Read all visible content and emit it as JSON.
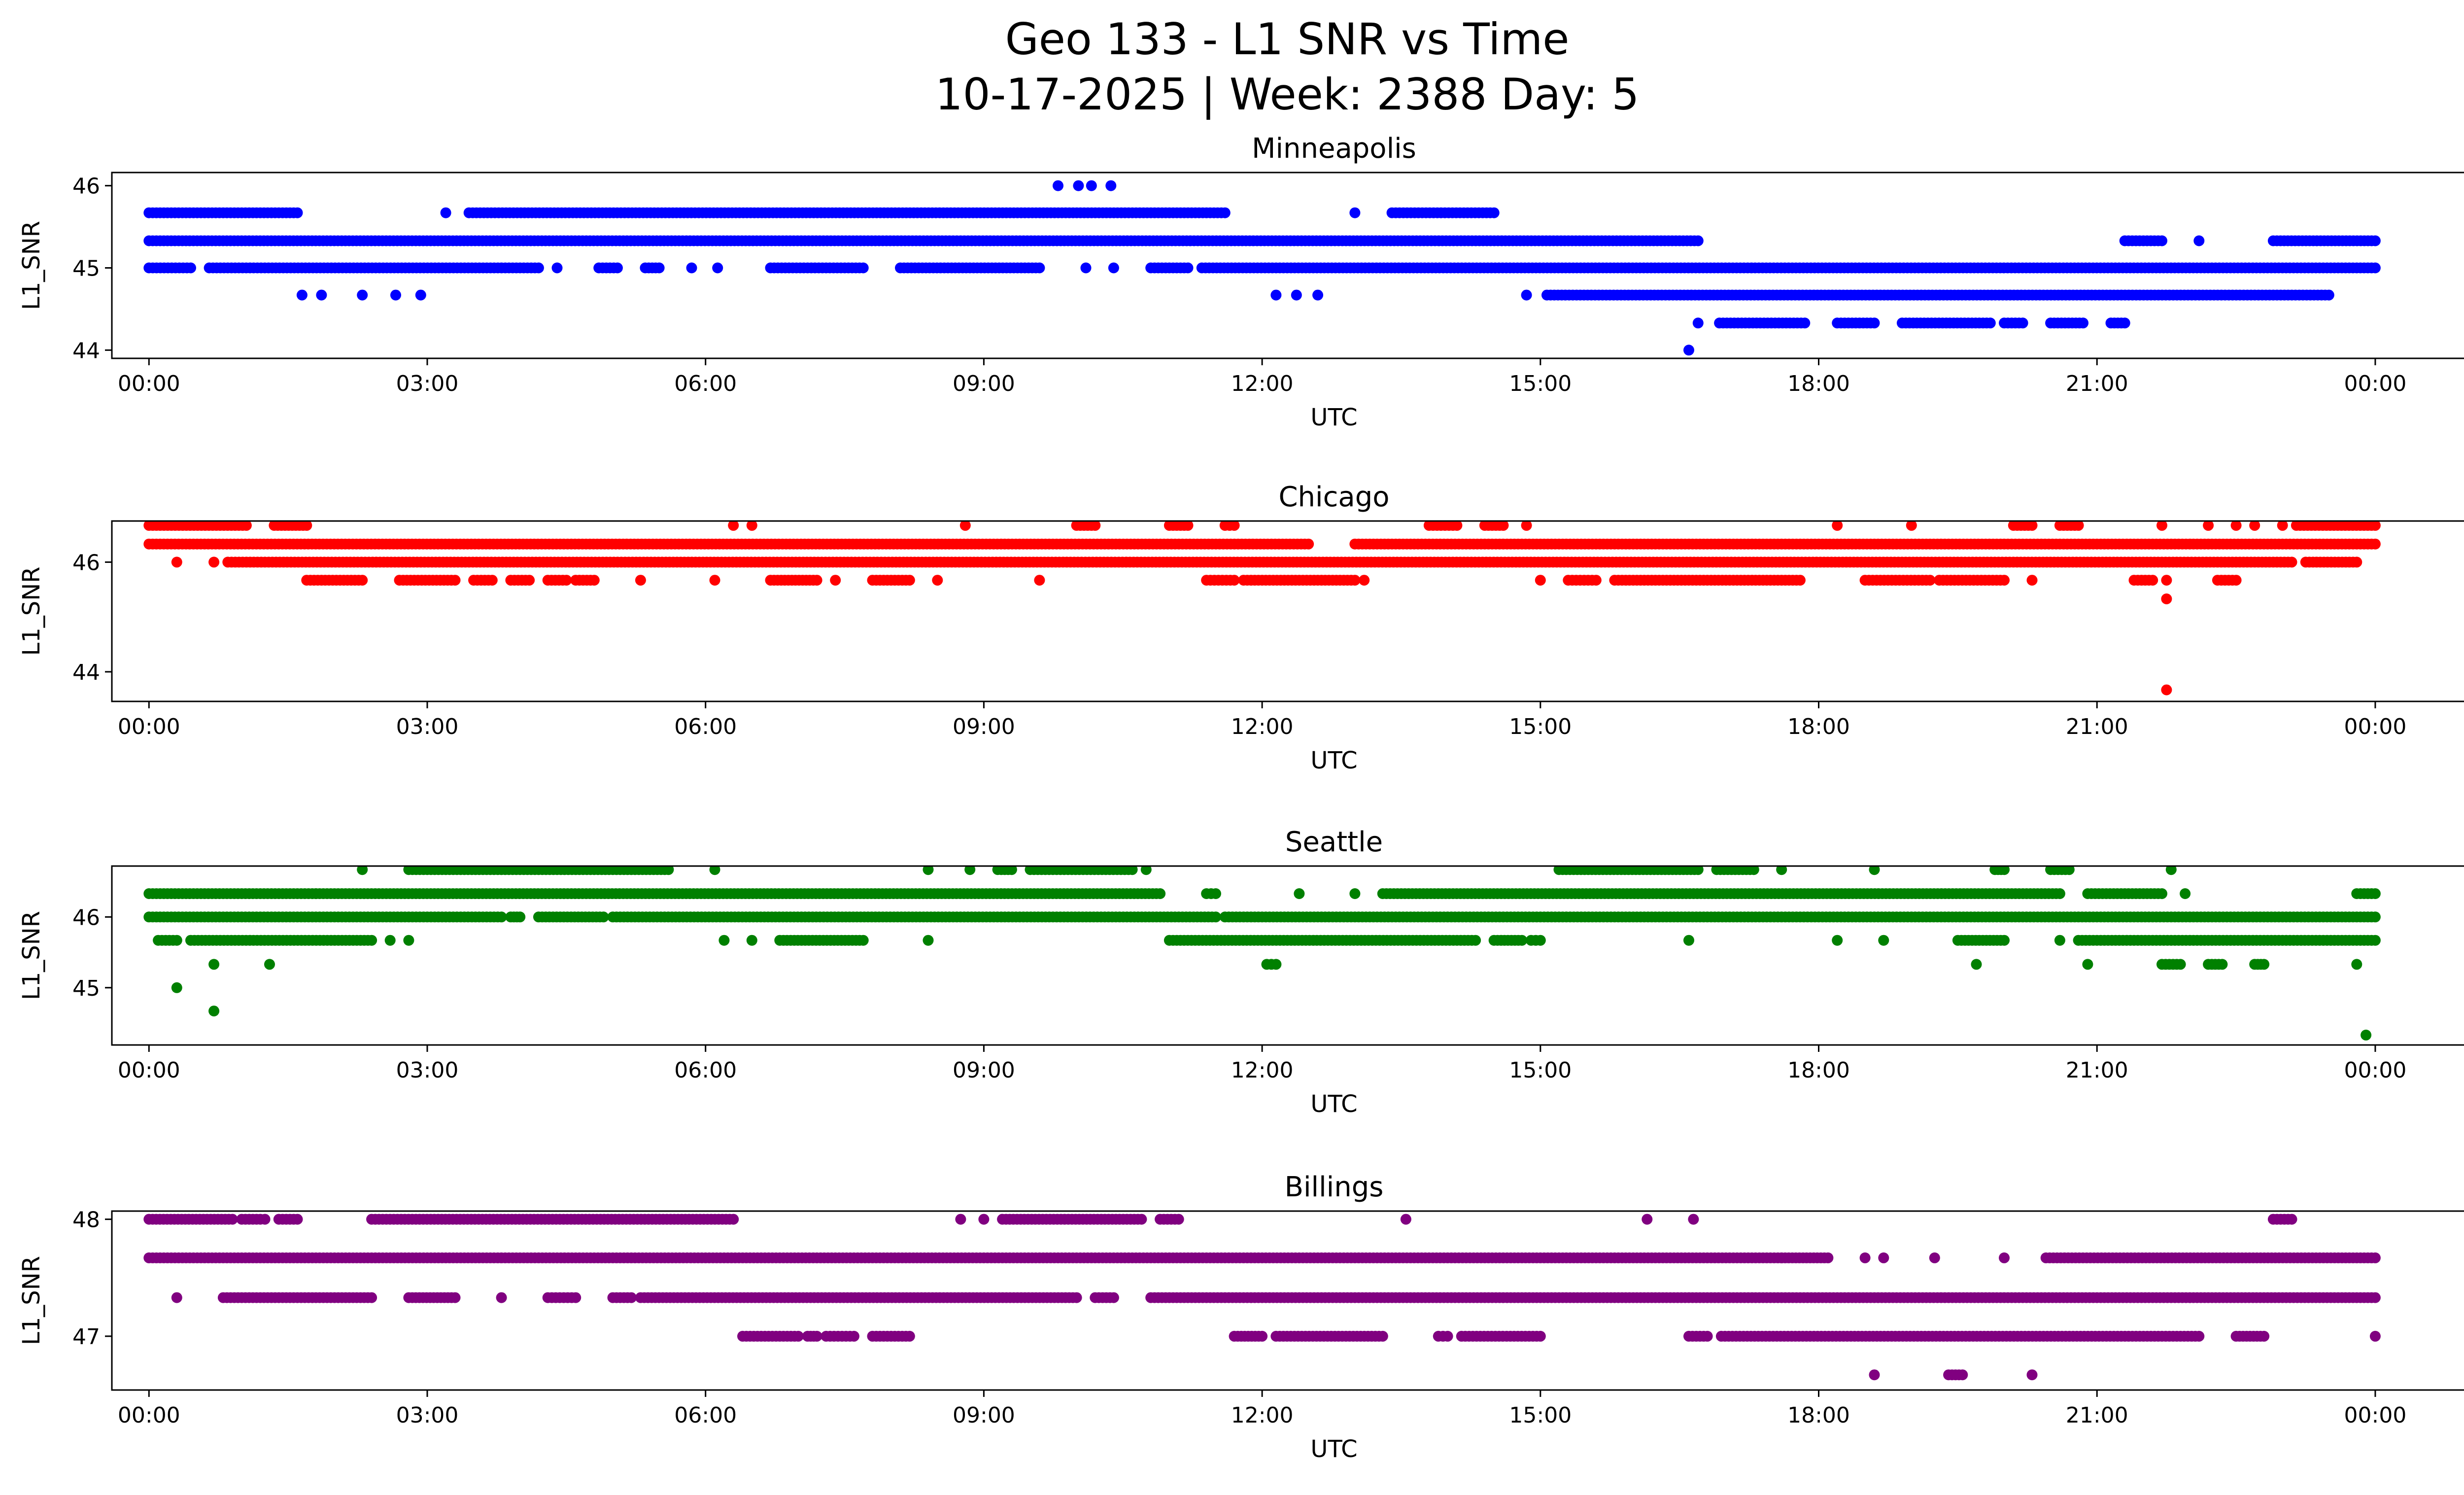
{
  "chart_data": {
    "type": "scatter",
    "title": "Geo 133 - L1 SNR vs Time",
    "subtitle": "10-17-2025 | Week: 2388 Day: 5",
    "xlabel": "UTC",
    "ylabel": "L1_SNR",
    "x_unit": "hours UTC",
    "xlim": [
      -0.4,
      25.95
    ],
    "x_ticks": [
      0,
      3,
      6,
      9,
      12,
      15,
      18,
      21,
      24
    ],
    "x_tick_labels": [
      "00:00",
      "03:00",
      "06:00",
      "09:00",
      "12:00",
      "15:00",
      "18:00",
      "21:00",
      "00:00"
    ],
    "grid": false,
    "subplots": [
      {
        "name": "Minneapolis",
        "color": "#0000ff",
        "ylim": [
          43.9,
          46.16
        ],
        "y_ticks": [
          44,
          45,
          46
        ],
        "segments": [
          [
            45.67,
            0,
            1.6
          ],
          [
            45.67,
            3.45,
            11.6
          ],
          [
            45.67,
            13.4,
            14.5
          ],
          [
            45.33,
            0,
            16.7
          ],
          [
            45.33,
            21.3,
            21.7
          ],
          [
            45.33,
            22.9,
            24
          ],
          [
            45,
            0,
            0.45
          ],
          [
            45,
            0.65,
            4.2
          ],
          [
            45,
            4.85,
            5.05
          ],
          [
            45,
            5.35,
            5.5
          ],
          [
            45,
            6.7,
            7.7
          ],
          [
            45,
            8.1,
            9.6
          ],
          [
            45,
            10.8,
            11.2
          ],
          [
            45,
            11.35,
            24
          ],
          [
            44.67,
            15.07,
            23.5
          ],
          [
            44.33,
            16.93,
            17.85
          ],
          [
            44.33,
            18.2,
            18.6
          ],
          [
            44.33,
            18.9,
            19.85
          ],
          [
            44.33,
            20.0,
            20.2
          ],
          [
            44.33,
            20.5,
            20.85
          ],
          [
            44.33,
            21.15,
            21.3
          ]
        ],
        "points": [
          [
            46,
            9.8
          ],
          [
            46,
            10.02
          ],
          [
            46,
            10.16
          ],
          [
            46,
            10.37
          ],
          [
            45.67,
            3.2
          ],
          [
            45.67,
            13.0
          ],
          [
            45.33,
            22.1
          ],
          [
            45,
            4.4
          ],
          [
            45,
            5.85
          ],
          [
            45,
            6.13
          ],
          [
            45,
            10.1
          ],
          [
            45,
            10.4
          ],
          [
            44.67,
            1.65
          ],
          [
            44.67,
            1.86
          ],
          [
            44.67,
            2.3
          ],
          [
            44.67,
            2.66
          ],
          [
            44.67,
            2.93
          ],
          [
            44.67,
            12.15
          ],
          [
            44.67,
            12.37
          ],
          [
            44.67,
            12.6
          ],
          [
            44.67,
            14.85
          ],
          [
            44.33,
            16.7
          ],
          [
            44,
            16.6
          ]
        ]
      },
      {
        "name": "Chicago",
        "color": "#ff0000",
        "ylim": [
          43.46,
          46.75
        ],
        "y_ticks": [
          44,
          46
        ],
        "segments": [
          [
            46.67,
            0,
            1.05
          ],
          [
            46.67,
            1.35,
            1.7
          ],
          [
            46.67,
            10,
            10.2
          ],
          [
            46.67,
            11,
            11.2
          ],
          [
            46.67,
            11.6,
            11.7
          ],
          [
            46.67,
            13.8,
            14.1
          ],
          [
            46.67,
            14.4,
            14.6
          ],
          [
            46.67,
            20.1,
            20.3
          ],
          [
            46.67,
            20.6,
            20.8
          ],
          [
            46.67,
            23.15,
            24
          ],
          [
            46.33,
            0,
            12.5
          ],
          [
            46.33,
            13,
            24
          ],
          [
            46,
            0.85,
            23.1
          ],
          [
            46,
            23.25,
            23.8
          ],
          [
            45.67,
            1.7,
            2.3
          ],
          [
            45.67,
            2.7,
            3.3
          ],
          [
            45.67,
            3.5,
            3.7
          ],
          [
            45.67,
            3.9,
            4.1
          ],
          [
            45.67,
            4.3,
            4.5
          ],
          [
            45.67,
            4.6,
            4.8
          ],
          [
            45.67,
            6.7,
            7.2
          ],
          [
            45.67,
            7.8,
            8.2
          ],
          [
            45.67,
            11.4,
            11.7
          ],
          [
            45.67,
            11.8,
            13.0
          ],
          [
            45.67,
            15.3,
            15.6
          ],
          [
            45.67,
            15.8,
            17.8
          ],
          [
            45.67,
            18.5,
            19.2
          ],
          [
            45.67,
            19.3,
            20.0
          ],
          [
            45.67,
            21.4,
            21.6
          ],
          [
            45.67,
            22.3,
            22.5
          ]
        ],
        "points": [
          [
            46.67,
            6.3
          ],
          [
            46.67,
            6.5
          ],
          [
            46.67,
            8.8
          ],
          [
            46.67,
            14.85
          ],
          [
            46.67,
            18.2
          ],
          [
            46.67,
            19.0
          ],
          [
            46.67,
            21.7
          ],
          [
            46.67,
            22.2
          ],
          [
            46.67,
            22.5
          ],
          [
            46.67,
            22.7
          ],
          [
            46.67,
            23.0
          ],
          [
            46,
            0.3
          ],
          [
            46,
            0.7
          ],
          [
            45.67,
            5.3
          ],
          [
            45.67,
            6.1
          ],
          [
            45.67,
            7.4
          ],
          [
            45.67,
            8.5
          ],
          [
            45.67,
            9.6
          ],
          [
            45.67,
            13.1
          ],
          [
            45.67,
            15.0
          ],
          [
            45.67,
            20.3
          ],
          [
            45.67,
            21.75
          ],
          [
            45.33,
            21.75
          ],
          [
            43.67,
            21.75
          ]
        ]
      },
      {
        "name": "Seattle",
        "color": "#008000",
        "ylim": [
          44.19,
          46.72
        ],
        "y_ticks": [
          45,
          46
        ],
        "segments": [
          [
            46.67,
            2.8,
            5.6
          ],
          [
            46.67,
            9.15,
            9.3
          ],
          [
            46.67,
            9.5,
            10.6
          ],
          [
            46.67,
            15.2,
            16.7
          ],
          [
            46.67,
            16.9,
            17.3
          ],
          [
            46.67,
            19.9,
            20.0
          ],
          [
            46.67,
            20.5,
            20.7
          ],
          [
            46.33,
            0,
            1.8
          ],
          [
            46.33,
            1.8,
            10.9
          ],
          [
            46.33,
            11.4,
            11.5
          ],
          [
            46.33,
            13.3,
            20.6
          ],
          [
            46.33,
            20.9,
            21.7
          ],
          [
            46.33,
            23.8,
            24
          ],
          [
            46,
            0,
            3.8
          ],
          [
            46,
            3.9,
            4.0
          ],
          [
            46,
            4.2,
            4.9
          ],
          [
            46,
            5.0,
            11.5
          ],
          [
            46,
            11.6,
            24
          ],
          [
            45.67,
            0.1,
            0.3
          ],
          [
            45.67,
            0.45,
            2.4
          ],
          [
            45.67,
            6.8,
            7.7
          ],
          [
            45.67,
            11.0,
            14.3
          ],
          [
            45.67,
            14.5,
            14.8
          ],
          [
            45.67,
            14.9,
            15.0
          ],
          [
            45.67,
            19.5,
            20.0
          ],
          [
            45.67,
            20.8,
            24
          ],
          [
            45.33,
            12.05,
            12.15
          ],
          [
            45.33,
            21.7,
            21.9
          ],
          [
            45.33,
            22.2,
            22.35
          ],
          [
            45.33,
            22.7,
            22.8
          ]
        ],
        "points": [
          [
            46.67,
            2.3
          ],
          [
            46.67,
            6.1
          ],
          [
            46.67,
            8.4
          ],
          [
            46.67,
            8.85
          ],
          [
            46.67,
            10.75
          ],
          [
            46.67,
            17.6
          ],
          [
            46.67,
            18.6
          ],
          [
            46.67,
            21.8
          ],
          [
            46.33,
            12.4
          ],
          [
            46.33,
            13.0
          ],
          [
            46.33,
            21.95
          ],
          [
            45.67,
            2.6
          ],
          [
            45.67,
            2.8
          ],
          [
            45.67,
            6.2
          ],
          [
            45.67,
            6.5
          ],
          [
            45.67,
            8.4
          ],
          [
            45.67,
            16.6
          ],
          [
            45.67,
            18.2
          ],
          [
            45.67,
            18.7
          ],
          [
            45.67,
            20.6
          ],
          [
            45.33,
            0.7
          ],
          [
            45.33,
            1.3
          ],
          [
            45.33,
            19.7
          ],
          [
            45.33,
            20.9
          ],
          [
            45.33,
            23.8
          ],
          [
            45,
            0.3
          ],
          [
            44.67,
            0.7
          ],
          [
            44.33,
            23.9
          ]
        ]
      },
      {
        "name": "Billings",
        "color": "#800080",
        "ylim": [
          46.54,
          48.07
        ],
        "y_ticks": [
          47,
          48
        ],
        "segments": [
          [
            48,
            0,
            0.9
          ],
          [
            48,
            1.0,
            1.2
          ],
          [
            48,
            1.4,
            1.6
          ],
          [
            48,
            2.4,
            6.3
          ],
          [
            48,
            9.2,
            10.7
          ],
          [
            48,
            10.9,
            11.1
          ],
          [
            48,
            22.9,
            23.1
          ],
          [
            47.67,
            0,
            17.6
          ],
          [
            47.67,
            17.6,
            18.1
          ],
          [
            47.67,
            20.45,
            24
          ],
          [
            47.33,
            0.8,
            2.4
          ],
          [
            47.33,
            2.8,
            3.3
          ],
          [
            47.33,
            4.3,
            4.6
          ],
          [
            47.33,
            5.0,
            5.2
          ],
          [
            47.33,
            5.3,
            10.0
          ],
          [
            47.33,
            10.2,
            10.4
          ],
          [
            47.33,
            10.8,
            24
          ],
          [
            47,
            6.4,
            7.0
          ],
          [
            47,
            7.1,
            7.2
          ],
          [
            47,
            7.3,
            7.6
          ],
          [
            47,
            7.8,
            8.2
          ],
          [
            47,
            11.7,
            12.0
          ],
          [
            47,
            12.15,
            13.3
          ],
          [
            47,
            13.9,
            14.0
          ],
          [
            47,
            14.15,
            15.0
          ],
          [
            47,
            16.6,
            16.8
          ],
          [
            47,
            16.95,
            22.1
          ],
          [
            47,
            22.5,
            22.8
          ],
          [
            46.67,
            19.4,
            19.55
          ]
        ],
        "points": [
          [
            48,
            1.25
          ],
          [
            48,
            8.75
          ],
          [
            48,
            9.0
          ],
          [
            48,
            13.55
          ],
          [
            48,
            16.15
          ],
          [
            48,
            16.65
          ],
          [
            47.67,
            18.5
          ],
          [
            47.67,
            18.7
          ],
          [
            47.67,
            19.25
          ],
          [
            47.67,
            20.0
          ],
          [
            47.33,
            0.3
          ],
          [
            47.33,
            3.8
          ],
          [
            47,
            24.0
          ],
          [
            46.67,
            18.6
          ],
          [
            46.67,
            20.3
          ]
        ]
      }
    ]
  }
}
